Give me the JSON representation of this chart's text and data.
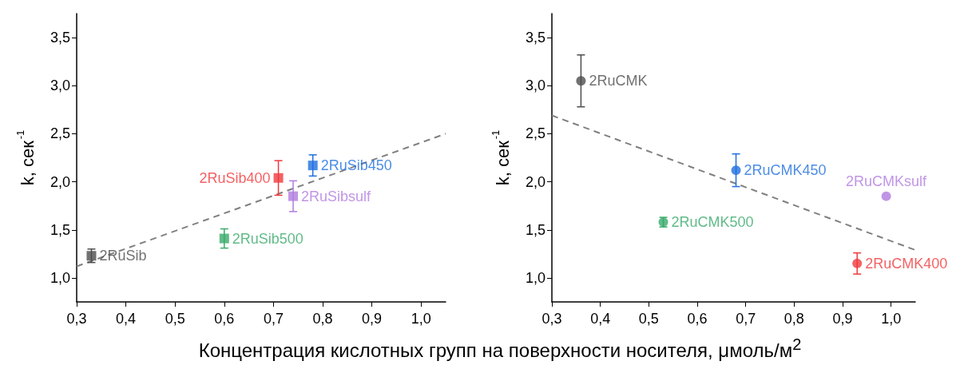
{
  "chart_data": [
    {
      "type": "scatter",
      "xlabel": "Концентрация кислотных групп на поверхности носителя, μмоль/м$^{2}$",
      "ylabel": "k, сек$^{-1}$",
      "marker": "square",
      "grid": false,
      "legend": false,
      "xlim": [
        0.3,
        1.05
      ],
      "ylim": [
        0.75,
        3.75
      ],
      "xticks": [
        {
          "value": 0.3,
          "label": "0,3"
        },
        {
          "value": 0.4,
          "label": "0,4"
        },
        {
          "value": 0.5,
          "label": "0,5"
        },
        {
          "value": 0.6,
          "label": "0,6"
        },
        {
          "value": 0.7,
          "label": "0,7"
        },
        {
          "value": 0.8,
          "label": "0,8"
        },
        {
          "value": 0.9,
          "label": "0,9"
        },
        {
          "value": 1.0,
          "label": "1,0"
        }
      ],
      "yticks": [
        {
          "value": 1.0,
          "label": "1,0"
        },
        {
          "value": 1.5,
          "label": "1,5"
        },
        {
          "value": 2.0,
          "label": "2,0"
        },
        {
          "value": 2.5,
          "label": "2,5"
        },
        {
          "value": 3.0,
          "label": "3,0"
        },
        {
          "value": 3.5,
          "label": "3,5"
        }
      ],
      "series": [
        {
          "name": "2RuSib",
          "color": "#4d4d4d",
          "x": [
            0.33
          ],
          "values": [
            1.23
          ],
          "errors": [
            [
              1.16,
              1.3
            ]
          ]
        },
        {
          "name": "2RuSib500",
          "color": "#3aaa6a",
          "x": [
            0.6
          ],
          "values": [
            1.41
          ],
          "errors": [
            [
              1.31,
              1.51
            ]
          ]
        },
        {
          "name": "2RuSib400",
          "color": "#f0393c",
          "x": [
            0.71
          ],
          "values": [
            2.04
          ],
          "errors": [
            [
              1.86,
              2.22
            ]
          ]
        },
        {
          "name": "2RuSibsulf",
          "color": "#b07be0",
          "x": [
            0.74
          ],
          "values": [
            1.85
          ],
          "errors": [
            [
              1.69,
              2.01
            ]
          ]
        },
        {
          "name": "2RuSib450",
          "color": "#1f6fe0",
          "x": [
            0.78
          ],
          "values": [
            2.17
          ],
          "errors": [
            [
              2.06,
              2.28
            ]
          ]
        },
        {
          "type": "line",
          "marker": "none",
          "line_style": "dashed",
          "color": "#808080",
          "x": [
            0.3,
            1.05
          ],
          "values": [
            1.12,
            2.5
          ]
        }
      ]
    },
    {
      "type": "scatter",
      "ylabel": "k, сек$^{-1}$",
      "marker": "circle",
      "grid": false,
      "legend": false,
      "xlim": [
        0.3,
        1.05
      ],
      "ylim": [
        0.75,
        3.75
      ],
      "xticks": [
        {
          "value": 0.3,
          "label": "0,3"
        },
        {
          "value": 0.4,
          "label": "0,4"
        },
        {
          "value": 0.5,
          "label": "0,5"
        },
        {
          "value": 0.6,
          "label": "0,6"
        },
        {
          "value": 0.7,
          "label": "0,7"
        },
        {
          "value": 0.8,
          "label": "0,8"
        },
        {
          "value": 0.9,
          "label": "0,9"
        },
        {
          "value": 1.0,
          "label": "1,0"
        }
      ],
      "yticks": [
        {
          "value": 1.0,
          "label": "1,0"
        },
        {
          "value": 1.5,
          "label": "1,5"
        },
        {
          "value": 2.0,
          "label": "2,0"
        },
        {
          "value": 2.5,
          "label": "2,5"
        },
        {
          "value": 3.0,
          "label": "3,0"
        },
        {
          "value": 3.5,
          "label": "3,5"
        }
      ],
      "series": [
        {
          "name": "2RuCMK",
          "color": "#4d4d4d",
          "x": [
            0.36
          ],
          "values": [
            3.05
          ],
          "errors": [
            [
              2.78,
              3.32
            ]
          ]
        },
        {
          "name": "2RuCMK500",
          "color": "#3aaa6a",
          "x": [
            0.53
          ],
          "values": [
            1.58
          ],
          "errors": [
            [
              1.53,
              1.63
            ]
          ]
        },
        {
          "name": "2RuCMK450",
          "color": "#1f6fe0",
          "x": [
            0.68
          ],
          "values": [
            2.12
          ],
          "errors": [
            [
              1.95,
              2.29
            ]
          ]
        },
        {
          "name": "2RuCMK400",
          "color": "#f0393c",
          "x": [
            0.93
          ],
          "values": [
            1.15
          ],
          "errors": [
            [
              1.04,
              1.26
            ]
          ]
        },
        {
          "name": "2RuCMKsulf",
          "color": "#b07be0",
          "x": [
            0.99
          ],
          "values": [
            1.85
          ]
        },
        {
          "type": "line",
          "marker": "none",
          "line_style": "dashed",
          "color": "#808080",
          "x": [
            0.3,
            1.05
          ],
          "values": [
            2.69,
            1.29
          ]
        }
      ]
    }
  ]
}
